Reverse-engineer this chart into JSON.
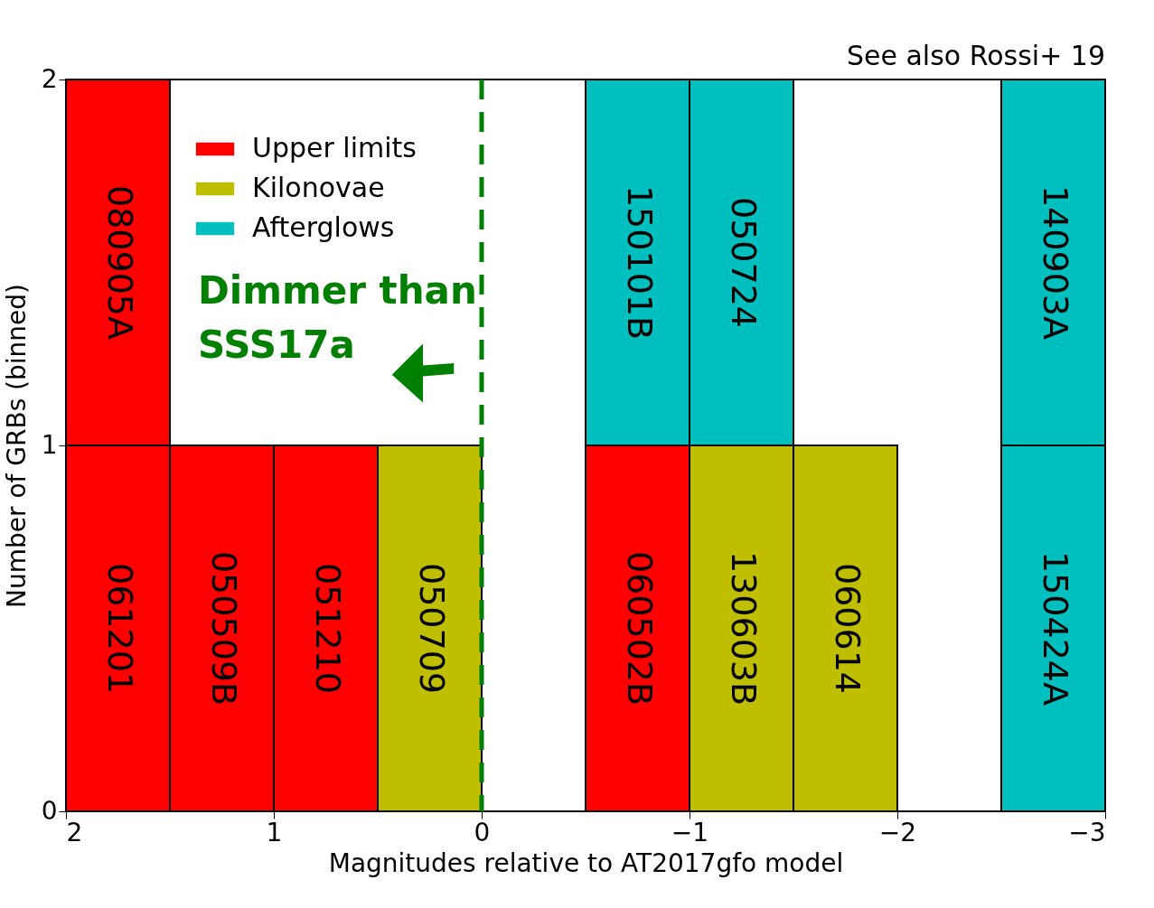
{
  "chart_data": {
    "type": "bar",
    "xlabel": "Magnitudes relative to AT2017gfo model",
    "ylabel": "Number of GRBs (binned)",
    "x": [
      1.75,
      1.25,
      0.75,
      0.25,
      -0.75,
      -1.25,
      -1.75,
      -2.75
    ],
    "xlim": [
      2,
      -3
    ],
    "xticks": [
      2,
      1,
      0,
      {
        "value": -1,
        "label": "−1"
      },
      {
        "value": -2,
        "label": "−2"
      },
      {
        "value": -3,
        "label": "−3"
      }
    ],
    "ylim": [
      0,
      2
    ],
    "yticks": [
      0,
      1,
      2
    ],
    "legend": "top left",
    "stacked": true,
    "series": [
      {
        "name": "Upper limits",
        "color": "#ff0000",
        "values": [
          1,
          1,
          1,
          null,
          1,
          null,
          null,
          null
        ]
      },
      {
        "name": "Kilonovae",
        "color": "#bfbf00",
        "values": [
          null,
          null,
          null,
          1,
          null,
          1,
          1,
          null
        ]
      },
      {
        "name": "Afterglows",
        "color": "#00bfbf",
        "values": [
          null,
          null,
          null,
          null,
          1,
          1,
          null,
          1
        ]
      },
      {
        "color": "#ff0000",
        "values": [
          1,
          null,
          null,
          null,
          null,
          null,
          null,
          null
        ]
      },
      {
        "color": "#00bfbf",
        "values": [
          null,
          null,
          null,
          null,
          null,
          null,
          null,
          1
        ]
      }
    ],
    "ref_lines": [
      {
        "axis": "x",
        "value": 0,
        "color": "#008000",
        "line_style": "dashed"
      }
    ],
    "annotations": [
      "Dimmer than SSS17a",
      "See also Rossi+ 19",
      "061201",
      "050509B",
      "051210",
      "060502B",
      "050709",
      "130603B",
      "060614",
      "150101B",
      "050724",
      "150424A",
      "080905A",
      "140903A"
    ]
  }
}
